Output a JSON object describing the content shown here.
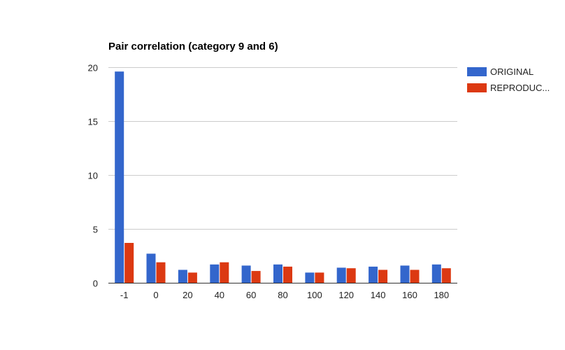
{
  "chart_data": {
    "type": "bar",
    "title": "Pair correlation (category 9 and 6)",
    "xlabel": "",
    "ylabel": "",
    "categories": [
      "-1",
      "0",
      "20",
      "40",
      "60",
      "80",
      "100",
      "120",
      "140",
      "160",
      "180"
    ],
    "series": [
      {
        "name": "ORIGINAL",
        "color": "#3366cc",
        "values": [
          19.6,
          2.7,
          1.2,
          1.7,
          1.6,
          1.7,
          0.95,
          1.4,
          1.5,
          1.6,
          1.7
        ]
      },
      {
        "name": "REPRODUC...",
        "color": "#dc3912",
        "values": [
          3.7,
          1.9,
          0.95,
          1.9,
          1.1,
          1.5,
          0.95,
          1.35,
          1.2,
          1.2,
          1.35
        ]
      }
    ],
    "yticks": [
      "0",
      "5",
      "10",
      "15",
      "20"
    ],
    "ylim": [
      0,
      20
    ],
    "grid": true,
    "legend_position": "right"
  }
}
